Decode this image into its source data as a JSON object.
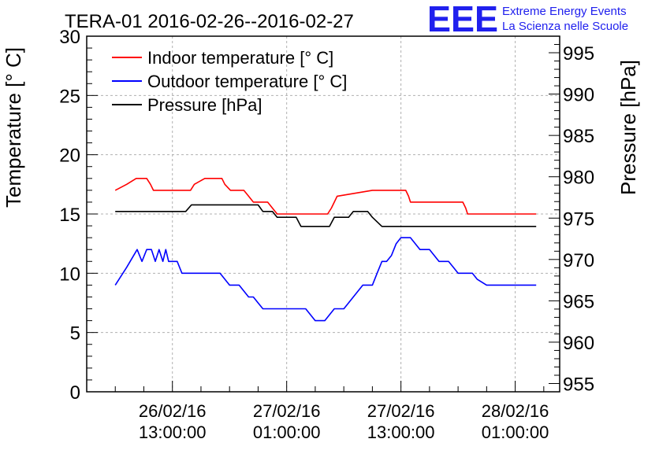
{
  "chart_data": {
    "type": "line",
    "title": "TERA-01 2016-02-26--2016-02-27",
    "ylabel": "Temperature [° C]",
    "y2label": "Pressure [hPa]",
    "ylim": [
      0,
      30
    ],
    "y2lim": [
      954,
      997
    ],
    "xlim_hours": [
      0,
      49.67
    ],
    "x_ticks": [
      {
        "hours": 9,
        "date": "26/02/16",
        "time": "13:00:00"
      },
      {
        "hours": 21,
        "date": "27/02/16",
        "time": "01:00:00"
      },
      {
        "hours": 33,
        "date": "27/02/16",
        "time": "13:00:00"
      },
      {
        "hours": 45,
        "date": "28/02/16",
        "time": "01:00:00"
      }
    ],
    "y_ticks": [
      0,
      5,
      10,
      15,
      20,
      25,
      30
    ],
    "y2_ticks": [
      955,
      960,
      965,
      970,
      975,
      980,
      985,
      990,
      995
    ],
    "grid": true,
    "legend_position": "top-left",
    "series": [
      {
        "name": "Indoor temperature [° C]",
        "color": "#ff0000",
        "axis": "left",
        "x": [
          3.0,
          4.2,
          5.2,
          6.3,
          6.7,
          7.0,
          7.5,
          10.9,
          11.3,
          12.4,
          13.2,
          14.2,
          14.5,
          15.1,
          16.0,
          16.5,
          17.0,
          17.5,
          18.0,
          18.5,
          19.0,
          19.5,
          20.0,
          20.5,
          21.0,
          21.5,
          22.0,
          22.5,
          23.0,
          23.5,
          24.0,
          24.5,
          25.3,
          25.7,
          26.0,
          26.3,
          30.0,
          30.5,
          31.0,
          31.5,
          32.0,
          32.5,
          33.0,
          33.5,
          33.8,
          34.0,
          35.0,
          35.5,
          36.0,
          37.0,
          38.0,
          39.5,
          39.8,
          40.0,
          40.5,
          41.0,
          42.0,
          43.0,
          44.0,
          45.0,
          46.0,
          47.2
        ],
        "y": [
          17,
          17.5,
          18,
          18,
          17.5,
          17,
          17,
          17,
          17.5,
          18,
          18,
          18,
          17.5,
          17,
          17,
          17,
          16.5,
          16,
          16,
          16,
          16,
          15.5,
          15,
          15,
          15,
          15,
          15,
          15,
          15,
          15,
          15,
          15,
          15,
          15.5,
          16,
          16.5,
          17,
          17,
          17,
          17,
          17,
          17,
          17,
          17,
          16.5,
          16,
          16,
          16,
          16,
          16,
          16,
          16,
          15.5,
          15,
          15,
          15,
          15,
          15,
          15,
          15,
          15,
          15
        ]
      },
      {
        "name": "Outdoor temperature [° C]",
        "color": "#0000ff",
        "axis": "left",
        "x": [
          3.0,
          4.2,
          5.3,
          5.8,
          6.3,
          6.8,
          7.2,
          7.6,
          8.0,
          8.3,
          8.6,
          9.0,
          9.5,
          10.0,
          11.0,
          12.0,
          13.0,
          14.0,
          14.5,
          15.0,
          15.5,
          16.0,
          16.5,
          17.0,
          17.5,
          18.0,
          18.5,
          19.0,
          19.5,
          20.0,
          21.0,
          22.0,
          22.5,
          23.0,
          23.5,
          24.0,
          24.5,
          25.0,
          25.5,
          26.0,
          26.5,
          27.0,
          27.5,
          28.0,
          28.5,
          29.0,
          29.5,
          30.0,
          30.5,
          31.0,
          31.5,
          32.0,
          32.5,
          33.0,
          34.0,
          34.5,
          35.0,
          35.5,
          36.0,
          36.5,
          37.0,
          37.5,
          38.0,
          38.5,
          39.0,
          40.0,
          40.5,
          41.0,
          42.0,
          43.0,
          44.0,
          45.0,
          46.0,
          47.2
        ],
        "y": [
          9,
          10.5,
          12,
          11,
          12,
          12,
          11,
          12,
          11,
          12,
          11,
          11,
          11,
          10,
          10,
          10,
          10,
          10,
          9.5,
          9,
          9,
          9,
          8.5,
          8,
          8,
          7.5,
          7,
          7,
          7,
          7,
          7,
          7,
          7,
          7,
          6.5,
          6,
          6,
          6,
          6.5,
          7,
          7,
          7,
          7.5,
          8,
          8.5,
          9,
          9,
          9,
          10,
          11,
          11,
          11.5,
          12.5,
          13,
          13,
          12.5,
          12,
          12,
          12,
          11.5,
          11,
          11,
          11,
          10.5,
          10,
          10,
          10,
          9.5,
          9,
          9,
          9,
          9,
          9,
          9
        ]
      },
      {
        "name": "Pressure [hPa]",
        "color": "#000000",
        "axis": "right",
        "x": [
          3.0,
          10.4,
          11.0,
          18.0,
          18.5,
          19.5,
          20.0,
          21.0,
          22.0,
          22.5,
          23.5,
          24.0,
          24.5,
          25.5,
          26.0,
          26.5,
          27.5,
          28.0,
          28.5,
          29.5,
          30.0,
          31.0,
          31.5,
          47.2
        ],
        "y": [
          975.8,
          975.8,
          976.6,
          976.6,
          975.8,
          975.8,
          975.1,
          975.1,
          975.1,
          974.0,
          974.0,
          974.0,
          974.0,
          974.0,
          975.1,
          975.1,
          975.1,
          975.8,
          975.8,
          975.8,
          975.1,
          974.0,
          974.0,
          974.0
        ]
      }
    ]
  },
  "logo": {
    "mark": "EEE",
    "line1": "Extreme Energy Events",
    "line2": "La Scienza nelle Scuole",
    "color": "#2020ee"
  }
}
